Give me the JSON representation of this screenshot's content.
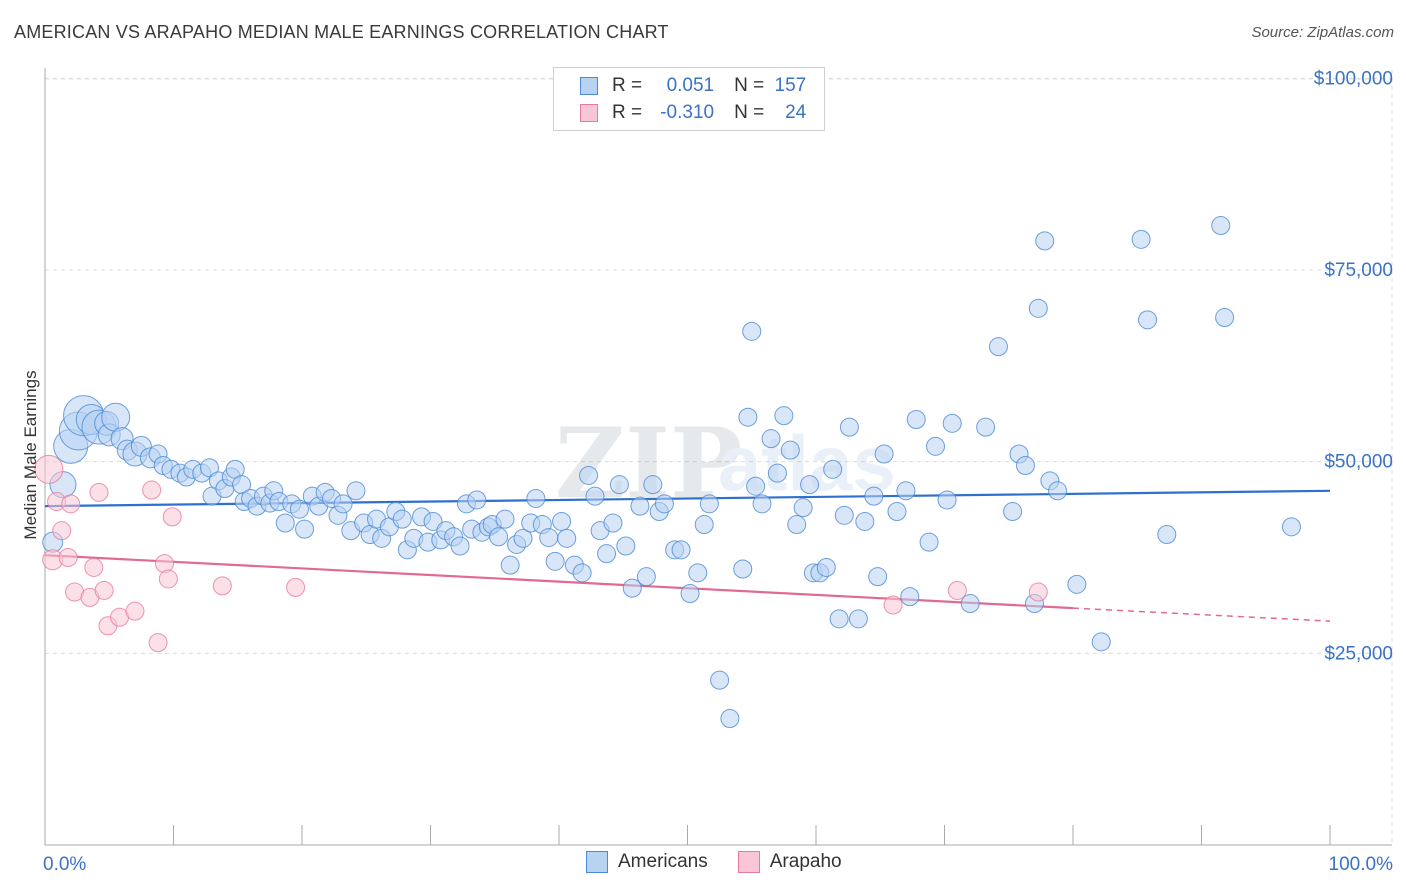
{
  "header": {
    "title": "AMERICAN VS ARAPAHO MEDIAN MALE EARNINGS CORRELATION CHART",
    "source": "Source: ZipAtlas.com"
  },
  "watermark": {
    "zip": "ZIP",
    "atlas": "atlas"
  },
  "legend": {
    "rows": [
      {
        "r_label": "R =",
        "r_value": "0.051",
        "n_label": "N =",
        "n_value": "157",
        "color": "#4a8ad6",
        "fill": "#b8d2f2"
      },
      {
        "r_label": "R =",
        "r_value": "-0.310",
        "n_label": "N =",
        "n_value": "24",
        "color": "#e87a9c",
        "fill": "#f8c6d6"
      }
    ]
  },
  "bottom_legend": [
    {
      "label": "Americans",
      "color": "#4a8ad6",
      "fill": "#b8d2f2"
    },
    {
      "label": "Arapaho",
      "color": "#e87a9c",
      "fill": "#f8c6d6"
    }
  ],
  "chart_data": {
    "type": "scatter",
    "title": "AMERICAN VS ARAPAHO MEDIAN MALE EARNINGS CORRELATION CHART",
    "xlabel": "",
    "ylabel": "Median Male Earnings",
    "xlim": [
      0,
      100
    ],
    "ylim": [
      0,
      105000
    ],
    "x_tick_labels": [
      "0.0%",
      "100.0%"
    ],
    "y_ticks": [
      25000,
      50000,
      75000,
      100000
    ],
    "y_tick_labels": [
      "$25,000",
      "$50,000",
      "$75,000",
      "$100,000"
    ],
    "grid": true,
    "series": [
      {
        "name": "Americans",
        "color": "#4a8ad6",
        "fill": "#b8d2f2",
        "trend": {
          "x0": 0,
          "y0": 44200,
          "x1": 100,
          "y1": 46200
        },
        "points": [
          [
            0.6,
            39500,
            10
          ],
          [
            1.4,
            47000,
            13
          ],
          [
            2.0,
            52000,
            17
          ],
          [
            2.6,
            54000,
            19
          ],
          [
            3.0,
            56000,
            20
          ],
          [
            3.6,
            55500,
            15
          ],
          [
            4.2,
            54500,
            17
          ],
          [
            4.8,
            55000,
            12
          ],
          [
            5.0,
            53500,
            11
          ],
          [
            5.5,
            55800,
            14
          ],
          [
            6.0,
            53000,
            11
          ],
          [
            6.4,
            51500,
            10
          ],
          [
            7.0,
            51000,
            12
          ],
          [
            7.5,
            52000,
            10
          ],
          [
            8.2,
            50500,
            10
          ],
          [
            8.8,
            51000,
            9
          ],
          [
            9.2,
            49500,
            9
          ],
          [
            9.8,
            49000,
            9
          ],
          [
            10.5,
            48500,
            9
          ],
          [
            11.0,
            48000,
            9
          ],
          [
            11.5,
            49000,
            9
          ],
          [
            12.2,
            48500,
            9
          ],
          [
            12.8,
            49200,
            9
          ],
          [
            13.0,
            45500,
            9
          ],
          [
            13.5,
            47500,
            9
          ],
          [
            14.0,
            46500,
            9
          ],
          [
            14.5,
            48000,
            9
          ],
          [
            14.8,
            49000,
            9
          ],
          [
            15.3,
            47000,
            9
          ],
          [
            15.5,
            44800,
            9
          ],
          [
            16.0,
            45200,
            9
          ],
          [
            16.5,
            44200,
            9
          ],
          [
            17.0,
            45500,
            9
          ],
          [
            17.5,
            44600,
            9
          ],
          [
            17.8,
            46200,
            9
          ],
          [
            18.2,
            44800,
            9
          ],
          [
            18.7,
            42000,
            9
          ],
          [
            19.2,
            44500,
            9
          ],
          [
            19.8,
            43800,
            9
          ],
          [
            20.2,
            41200,
            9
          ],
          [
            20.8,
            45500,
            9
          ],
          [
            21.3,
            44200,
            9
          ],
          [
            21.8,
            46000,
            9
          ],
          [
            22.3,
            45200,
            9
          ],
          [
            22.8,
            43000,
            9
          ],
          [
            23.2,
            44500,
            9
          ],
          [
            23.8,
            41000,
            9
          ],
          [
            24.2,
            46200,
            9
          ],
          [
            24.8,
            42000,
            9
          ],
          [
            25.3,
            40500,
            9
          ],
          [
            25.8,
            42500,
            9
          ],
          [
            26.2,
            40000,
            9
          ],
          [
            26.8,
            41500,
            9
          ],
          [
            27.3,
            43500,
            9
          ],
          [
            27.8,
            42500,
            9
          ],
          [
            28.2,
            38500,
            9
          ],
          [
            28.7,
            40000,
            9
          ],
          [
            29.3,
            42800,
            9
          ],
          [
            29.8,
            39500,
            9
          ],
          [
            30.2,
            42200,
            9
          ],
          [
            30.8,
            39800,
            9
          ],
          [
            31.2,
            41000,
            9
          ],
          [
            31.8,
            40200,
            9
          ],
          [
            32.3,
            39000,
            9
          ],
          [
            32.8,
            44500,
            9
          ],
          [
            33.2,
            41200,
            9
          ],
          [
            33.6,
            45000,
            9
          ],
          [
            34.0,
            40800,
            9
          ],
          [
            34.5,
            41500,
            9
          ],
          [
            34.8,
            41800,
            9
          ],
          [
            35.3,
            40200,
            9
          ],
          [
            35.8,
            42500,
            9
          ],
          [
            36.2,
            36500,
            9
          ],
          [
            36.7,
            39200,
            9
          ],
          [
            37.2,
            40000,
            9
          ],
          [
            37.8,
            42000,
            9
          ],
          [
            38.2,
            45200,
            9
          ],
          [
            38.7,
            41800,
            9
          ],
          [
            39.2,
            40100,
            9
          ],
          [
            39.7,
            37000,
            9
          ],
          [
            40.2,
            42200,
            9
          ],
          [
            40.6,
            40000,
            9
          ],
          [
            41.2,
            36500,
            9
          ],
          [
            41.8,
            35500,
            9
          ],
          [
            42.3,
            48200,
            9
          ],
          [
            42.8,
            45500,
            9
          ],
          [
            43.2,
            41000,
            9
          ],
          [
            43.7,
            38000,
            9
          ],
          [
            44.2,
            42000,
            9
          ],
          [
            44.7,
            47000,
            9
          ],
          [
            45.2,
            39000,
            9
          ],
          [
            45.7,
            33500,
            9
          ],
          [
            46.3,
            44200,
            9
          ],
          [
            46.8,
            35000,
            9
          ],
          [
            47.3,
            47000,
            9
          ],
          [
            47.8,
            43500,
            9
          ],
          [
            48.2,
            44500,
            9
          ],
          [
            49.0,
            38500,
            9
          ],
          [
            49.5,
            38500,
            9
          ],
          [
            50.2,
            32800,
            9
          ],
          [
            50.8,
            35500,
            9
          ],
          [
            51.3,
            41800,
            9
          ],
          [
            51.7,
            44500,
            9
          ],
          [
            52.5,
            21500,
            9
          ],
          [
            53.3,
            16500,
            9
          ],
          [
            54.3,
            36000,
            9
          ],
          [
            54.7,
            55800,
            9
          ],
          [
            55.0,
            67000,
            9
          ],
          [
            55.3,
            46800,
            9
          ],
          [
            55.8,
            44500,
            9
          ],
          [
            56.5,
            53000,
            9
          ],
          [
            57.0,
            48500,
            9
          ],
          [
            57.5,
            56000,
            9
          ],
          [
            58.0,
            51500,
            9
          ],
          [
            58.5,
            41800,
            9
          ],
          [
            59.0,
            44000,
            9
          ],
          [
            59.5,
            47000,
            9
          ],
          [
            59.8,
            35500,
            9
          ],
          [
            60.3,
            35500,
            9
          ],
          [
            60.8,
            36200,
            9
          ],
          [
            61.3,
            49000,
            9
          ],
          [
            61.8,
            29500,
            9
          ],
          [
            62.2,
            43000,
            9
          ],
          [
            62.6,
            54500,
            9
          ],
          [
            63.3,
            29500,
            9
          ],
          [
            63.8,
            42200,
            9
          ],
          [
            64.5,
            45500,
            9
          ],
          [
            64.8,
            35000,
            9
          ],
          [
            65.3,
            51000,
            9
          ],
          [
            66.3,
            43500,
            9
          ],
          [
            67.0,
            46200,
            9
          ],
          [
            67.3,
            32400,
            9
          ],
          [
            67.8,
            55500,
            9
          ],
          [
            68.8,
            39500,
            9
          ],
          [
            69.3,
            52000,
            9
          ],
          [
            70.2,
            45000,
            9
          ],
          [
            70.6,
            55000,
            9
          ],
          [
            72.0,
            31500,
            9
          ],
          [
            73.2,
            54500,
            9
          ],
          [
            74.2,
            65000,
            9
          ],
          [
            75.3,
            43500,
            9
          ],
          [
            75.8,
            51000,
            9
          ],
          [
            76.3,
            49500,
            9
          ],
          [
            77.0,
            31500,
            9
          ],
          [
            77.3,
            70000,
            9
          ],
          [
            77.8,
            78800,
            9
          ],
          [
            78.2,
            47500,
            9
          ],
          [
            78.8,
            46200,
            9
          ],
          [
            80.3,
            34000,
            9
          ],
          [
            82.2,
            26500,
            9
          ],
          [
            85.3,
            79000,
            9
          ],
          [
            85.8,
            68500,
            9
          ],
          [
            87.3,
            40500,
            9
          ],
          [
            91.5,
            80800,
            9
          ],
          [
            91.8,
            68800,
            9
          ],
          [
            97.0,
            41500,
            9
          ]
        ]
      },
      {
        "name": "Arapaho",
        "color": "#e87a9c",
        "fill": "#f8c6d6",
        "trend": {
          "x0": 0,
          "y0": 37800,
          "x1": 80,
          "y1": 30900
        },
        "trend_dashed": {
          "x0": 80,
          "y0": 30900,
          "x1": 100,
          "y1": 29200
        },
        "points": [
          [
            0.3,
            49000,
            14
          ],
          [
            0.6,
            37200,
            10
          ],
          [
            0.9,
            44800,
            9
          ],
          [
            1.3,
            41000,
            9
          ],
          [
            1.8,
            37500,
            9
          ],
          [
            2.0,
            44500,
            9
          ],
          [
            2.3,
            33000,
            9
          ],
          [
            3.5,
            32300,
            9
          ],
          [
            3.8,
            36200,
            9
          ],
          [
            4.2,
            46000,
            9
          ],
          [
            4.6,
            33200,
            9
          ],
          [
            4.9,
            28600,
            9
          ],
          [
            5.8,
            29700,
            9
          ],
          [
            7.0,
            30500,
            9
          ],
          [
            8.3,
            46300,
            9
          ],
          [
            8.8,
            26400,
            9
          ],
          [
            9.3,
            36700,
            9
          ],
          [
            9.6,
            34700,
            9
          ],
          [
            9.9,
            42800,
            9
          ],
          [
            13.8,
            33800,
            9
          ],
          [
            19.5,
            33600,
            9
          ],
          [
            66.0,
            31300,
            9
          ],
          [
            71.0,
            33200,
            9
          ],
          [
            77.3,
            33000,
            9
          ]
        ]
      }
    ]
  }
}
